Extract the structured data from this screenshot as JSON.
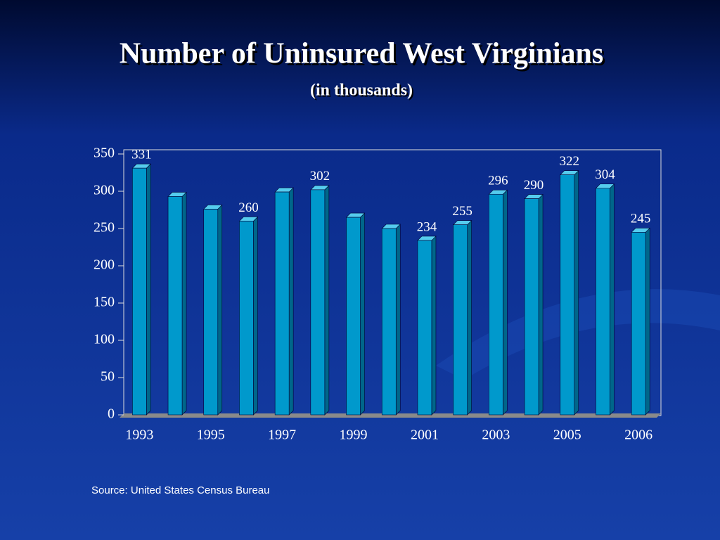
{
  "chart_data": {
    "type": "bar",
    "title": "Number of Uninsured West Virginians",
    "subtitle": "(in thousands)",
    "source": "Source: United States Census Bureau",
    "categories": [
      "1993",
      null,
      "1995",
      null,
      "1997",
      null,
      "1999",
      null,
      "2001",
      null,
      "2003",
      null,
      "2005",
      null,
      "2006"
    ],
    "values": [
      331,
      293,
      276,
      260,
      299,
      302,
      265,
      250,
      234,
      255,
      296,
      290,
      322,
      304,
      245
    ],
    "value_labels": [
      "331",
      null,
      null,
      "260",
      null,
      "302",
      null,
      null,
      "234",
      "255",
      "296",
      "290",
      "322",
      "304",
      "245"
    ],
    "color": "#0099cc",
    "ylim": [
      0,
      350
    ],
    "yticks": [
      0,
      50,
      100,
      150,
      200,
      250,
      300,
      350
    ],
    "grid": false
  }
}
